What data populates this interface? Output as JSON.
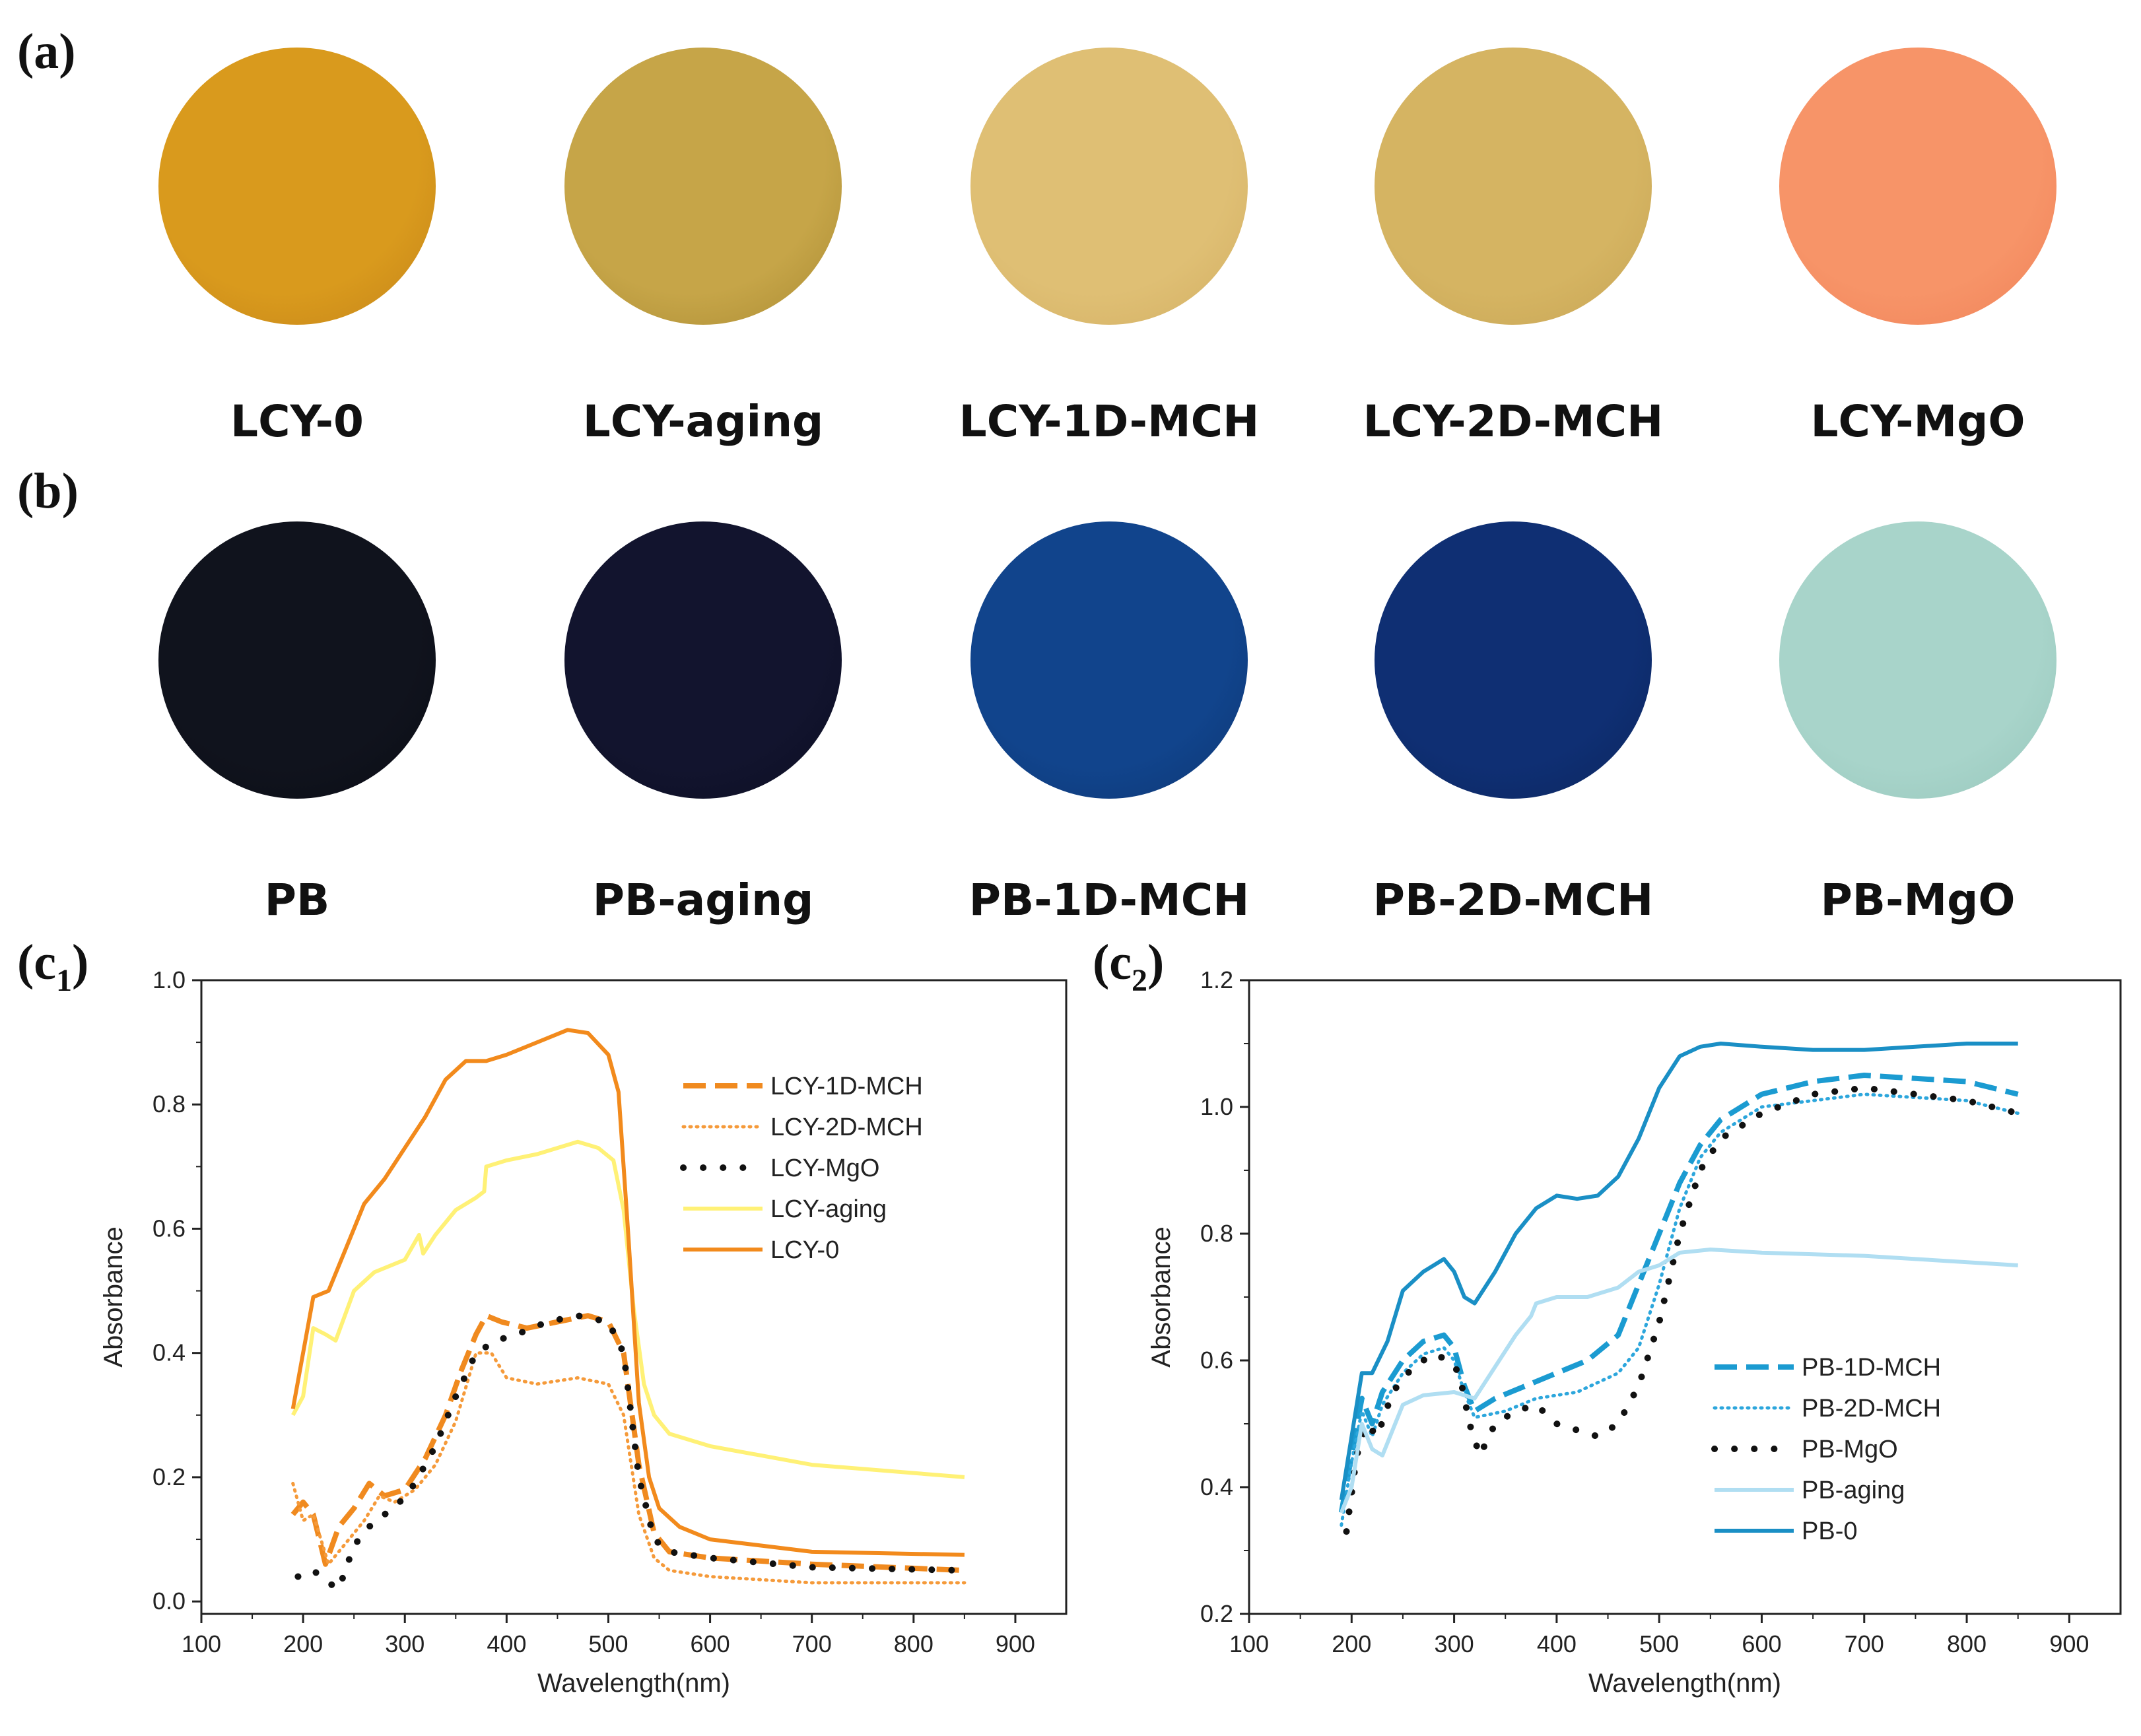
{
  "panels": {
    "a": "(a)",
    "b": "(b)",
    "c1": {
      "base": "(c",
      "sub": "1",
      "close": ")"
    },
    "c2": {
      "base": "(c",
      "sub": "2",
      "close": ")"
    }
  },
  "row_a": [
    {
      "label": "LCY-0",
      "color": "#d99a1d",
      "edge": "#c3831a"
    },
    {
      "label": "LCY-aging",
      "color": "#c6a548",
      "edge": "#a98a32"
    },
    {
      "label": "LCY-1D-MCH",
      "color": "#dfbf74",
      "edge": "#d2ae62"
    },
    {
      "label": "LCY-2D-MCH",
      "color": "#d5b462",
      "edge": "#c6a454"
    },
    {
      "label": "LCY-MgO",
      "color": "#f79468",
      "edge": "#ef8158"
    }
  ],
  "row_b": [
    {
      "label": "PB",
      "color": "#10131d",
      "edge": "#0a0c14"
    },
    {
      "label": "PB-aging",
      "color": "#12142e",
      "edge": "#0c0e22"
    },
    {
      "label": "PB-1D-MCH",
      "color": "#11448c",
      "edge": "#0d3672"
    },
    {
      "label": "PB-2D-MCH",
      "color": "#0f2f73",
      "edge": "#0b255c"
    },
    {
      "label": "PB-MgO",
      "color": "#a8d4ca",
      "edge": "#96c6bb"
    }
  ],
  "chart_data": [
    {
      "type": "line",
      "xlabel": "Wavelength(nm)",
      "ylabel": "Absorbance",
      "xlim": [
        100,
        950
      ],
      "ylim": [
        -0.02,
        1.0
      ],
      "xticks": [
        100,
        200,
        300,
        400,
        500,
        600,
        700,
        800,
        900
      ],
      "yticks": [
        0.0,
        0.2,
        0.4,
        0.6,
        0.8,
        1.0
      ],
      "ytick_labels": [
        "0.0",
        "0.2",
        "0.4",
        "0.6",
        "0.8",
        "1.0"
      ],
      "legend_position": "right",
      "series": [
        {
          "name": "LCY-1D-MCH",
          "color": "#f08a1f",
          "dash": "dashed",
          "x": [
            190,
            200,
            210,
            222,
            235,
            250,
            265,
            280,
            300,
            320,
            340,
            355,
            370,
            380,
            395,
            420,
            450,
            480,
            500,
            515,
            530,
            545,
            560,
            600,
            700,
            850
          ],
          "y": [
            0.14,
            0.16,
            0.14,
            0.06,
            0.12,
            0.15,
            0.19,
            0.17,
            0.18,
            0.23,
            0.3,
            0.37,
            0.43,
            0.46,
            0.45,
            0.44,
            0.45,
            0.46,
            0.45,
            0.4,
            0.22,
            0.11,
            0.08,
            0.07,
            0.06,
            0.05
          ]
        },
        {
          "name": "LCY-2D-MCH",
          "color": "#f59a3a",
          "dash": "dotted",
          "x": [
            190,
            200,
            210,
            225,
            240,
            260,
            275,
            290,
            310,
            330,
            350,
            370,
            385,
            400,
            430,
            470,
            500,
            515,
            530,
            545,
            560,
            600,
            700,
            850
          ],
          "y": [
            0.19,
            0.13,
            0.14,
            0.06,
            0.09,
            0.13,
            0.17,
            0.16,
            0.18,
            0.22,
            0.29,
            0.4,
            0.4,
            0.36,
            0.35,
            0.36,
            0.35,
            0.3,
            0.14,
            0.07,
            0.05,
            0.04,
            0.03,
            0.03
          ]
        },
        {
          "name": "LCY-MgO",
          "color": "#111111",
          "dash": "dots",
          "x": [
            195,
            210,
            225,
            235,
            250,
            270,
            290,
            310,
            330,
            350,
            370,
            390,
            410,
            440,
            470,
            500,
            515,
            530,
            545,
            560,
            600,
            700,
            850
          ],
          "y": [
            0.04,
            0.05,
            0.03,
            0.02,
            0.09,
            0.13,
            0.15,
            0.19,
            0.25,
            0.33,
            0.4,
            0.42,
            0.43,
            0.45,
            0.46,
            0.45,
            0.4,
            0.2,
            0.1,
            0.08,
            0.07,
            0.055,
            0.05
          ]
        },
        {
          "name": "LCY-aging",
          "color": "#fff176",
          "dash": "solid",
          "x": [
            190,
            200,
            210,
            222,
            232,
            250,
            270,
            300,
            314,
            318,
            330,
            350,
            370,
            378,
            380,
            400,
            430,
            470,
            490,
            505,
            515,
            525,
            535,
            545,
            560,
            600,
            700,
            850
          ],
          "y": [
            0.3,
            0.33,
            0.44,
            0.43,
            0.42,
            0.5,
            0.53,
            0.55,
            0.59,
            0.56,
            0.59,
            0.63,
            0.65,
            0.66,
            0.7,
            0.71,
            0.72,
            0.74,
            0.73,
            0.71,
            0.63,
            0.47,
            0.35,
            0.3,
            0.27,
            0.25,
            0.22,
            0.2
          ]
        },
        {
          "name": "LCY-0",
          "color": "#f28a1c",
          "dash": "solid",
          "x": [
            190,
            200,
            210,
            225,
            240,
            260,
            280,
            300,
            320,
            340,
            360,
            380,
            400,
            430,
            460,
            480,
            500,
            510,
            520,
            530,
            540,
            550,
            570,
            600,
            700,
            850
          ],
          "y": [
            0.31,
            0.4,
            0.49,
            0.5,
            0.56,
            0.64,
            0.68,
            0.73,
            0.78,
            0.84,
            0.87,
            0.87,
            0.88,
            0.9,
            0.92,
            0.915,
            0.88,
            0.82,
            0.58,
            0.32,
            0.2,
            0.15,
            0.12,
            0.1,
            0.08,
            0.075
          ]
        }
      ]
    },
    {
      "type": "line",
      "xlabel": "Wavelength(nm)",
      "ylabel": "Absorbance",
      "xlim": [
        100,
        950
      ],
      "ylim": [
        0.2,
        1.2
      ],
      "xticks": [
        100,
        200,
        300,
        400,
        500,
        600,
        700,
        800,
        900
      ],
      "yticks": [
        0.2,
        0.4,
        0.6,
        0.8,
        1.0,
        1.2
      ],
      "ytick_labels": [
        "0.2",
        "0.4",
        "0.6",
        "0.8",
        "1.0",
        "1.2"
      ],
      "legend_position": "bottom-right",
      "series": [
        {
          "name": "PB-1D-MCH",
          "color": "#1b9bd1",
          "dash": "dashed",
          "x": [
            190,
            200,
            210,
            220,
            230,
            250,
            270,
            290,
            300,
            310,
            320,
            340,
            370,
            400,
            430,
            460,
            480,
            500,
            520,
            540,
            560,
            600,
            650,
            700,
            750,
            800,
            850
          ],
          "y": [
            0.36,
            0.45,
            0.54,
            0.5,
            0.55,
            0.6,
            0.63,
            0.64,
            0.62,
            0.56,
            0.52,
            0.54,
            0.56,
            0.58,
            0.6,
            0.64,
            0.72,
            0.8,
            0.88,
            0.94,
            0.98,
            1.02,
            1.04,
            1.05,
            1.045,
            1.04,
            1.02
          ]
        },
        {
          "name": "PB-2D-MCH",
          "color": "#2ca6dc",
          "dash": "dotted",
          "x": [
            190,
            200,
            210,
            220,
            230,
            250,
            270,
            290,
            300,
            310,
            320,
            350,
            380,
            420,
            460,
            480,
            500,
            520,
            540,
            560,
            600,
            650,
            700,
            750,
            800,
            850
          ],
          "y": [
            0.34,
            0.44,
            0.52,
            0.48,
            0.53,
            0.58,
            0.61,
            0.62,
            0.6,
            0.55,
            0.51,
            0.52,
            0.54,
            0.55,
            0.58,
            0.62,
            0.72,
            0.84,
            0.92,
            0.96,
            1.0,
            1.01,
            1.02,
            1.015,
            1.01,
            0.99
          ]
        },
        {
          "name": "PB-MgO",
          "color": "#111111",
          "dash": "dots",
          "x": [
            195,
            205,
            215,
            225,
            240,
            260,
            280,
            295,
            305,
            315,
            325,
            340,
            360,
            380,
            400,
            420,
            440,
            460,
            480,
            500,
            520,
            540,
            560,
            600,
            650,
            700,
            750,
            800,
            850
          ],
          "y": [
            0.33,
            0.45,
            0.5,
            0.48,
            0.55,
            0.59,
            0.61,
            0.6,
            0.58,
            0.5,
            0.45,
            0.5,
            0.52,
            0.53,
            0.5,
            0.49,
            0.48,
            0.5,
            0.56,
            0.66,
            0.8,
            0.9,
            0.95,
            0.99,
            1.02,
            1.03,
            1.02,
            1.01,
            0.99
          ]
        },
        {
          "name": "PB-aging",
          "color": "#b0def2",
          "dash": "solid",
          "x": [
            190,
            200,
            210,
            220,
            230,
            250,
            270,
            300,
            320,
            340,
            360,
            375,
            380,
            400,
            430,
            460,
            480,
            500,
            520,
            550,
            600,
            700,
            850
          ],
          "y": [
            0.36,
            0.4,
            0.5,
            0.46,
            0.45,
            0.53,
            0.545,
            0.55,
            0.54,
            0.59,
            0.64,
            0.67,
            0.69,
            0.7,
            0.7,
            0.715,
            0.74,
            0.75,
            0.77,
            0.775,
            0.77,
            0.765,
            0.75
          ]
        },
        {
          "name": "PB-0",
          "color": "#1a8fc5",
          "dash": "solid",
          "x": [
            190,
            200,
            210,
            220,
            235,
            250,
            270,
            290,
            300,
            310,
            320,
            340,
            360,
            380,
            400,
            420,
            440,
            460,
            480,
            500,
            520,
            540,
            560,
            600,
            650,
            700,
            750,
            800,
            850
          ],
          "y": [
            0.38,
            0.48,
            0.58,
            0.58,
            0.63,
            0.71,
            0.74,
            0.76,
            0.74,
            0.7,
            0.69,
            0.74,
            0.8,
            0.84,
            0.86,
            0.855,
            0.86,
            0.89,
            0.95,
            1.03,
            1.08,
            1.095,
            1.1,
            1.095,
            1.09,
            1.09,
            1.095,
            1.1,
            1.1
          ]
        }
      ]
    }
  ]
}
